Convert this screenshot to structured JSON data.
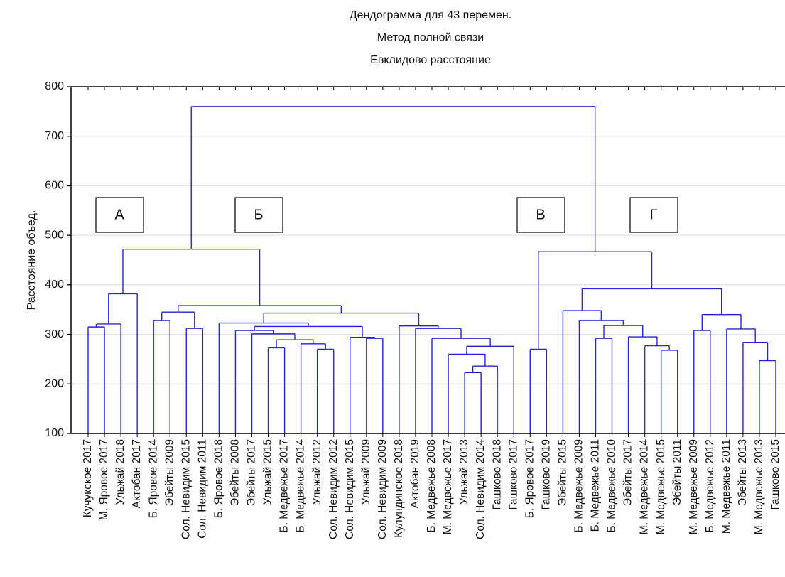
{
  "chart_data": {
    "type": "dendrogram",
    "title": [
      "Дендограмма для 43 перемен.",
      "Метод полной связи",
      "Евклидово расстояние"
    ],
    "ylabel": "Расстояние объед.",
    "ylim": [
      100,
      800
    ],
    "yticks": [
      100,
      200,
      300,
      400,
      500,
      600,
      700,
      800
    ],
    "grid": true,
    "color": "#2323dc",
    "annotations": [
      "А",
      "Б",
      "В",
      "Г"
    ],
    "tree": {
      "height": 760,
      "children": [
        {
          "height": 472,
          "children": [
            {
              "height": 382,
              "children": [
                {
                  "height": 321,
                  "children": [
                    {
                      "height": 315,
                      "children": [
                        "Кучукское 2017",
                        "М. Яровое 2017"
                      ]
                    },
                    "Ульжай 2018"
                  ]
                },
                "Актобан 2017"
              ]
            },
            {
              "height": 358,
              "children": [
                {
                  "height": 345,
                  "children": [
                    {
                      "height": 328,
                      "children": [
                        "Б. Яровое 2014",
                        "Эбейты 2009"
                      ]
                    },
                    {
                      "height": 312,
                      "children": [
                        "Сол. Невидим 2015",
                        "Сол. Невидим 2011"
                      ]
                    }
                  ]
                },
                {
                  "height": 343,
                  "children": [
                    {
                      "height": 323,
                      "children": [
                        "Б. Яровое 2018",
                        {
                          "height": 316,
                          "children": [
                            {
                              "height": 308,
                              "children": [
                                "Эбейты 2008",
                                {
                                  "height": 301,
                                  "children": [
                                    "Эбейты 2017",
                                    {
                                      "height": 289,
                                      "children": [
                                        {
                                          "height": 273,
                                          "children": [
                                            "Ульжай 2015",
                                            "Б. Медвежье 2017"
                                          ]
                                        },
                                        {
                                          "height": 281,
                                          "children": [
                                            "Б. Медвежье 2014",
                                            {
                                              "height": 270,
                                              "children": [
                                                "Ульжай 2012",
                                                "Сол. Невидим 2012"
                                              ]
                                            }
                                          ]
                                        }
                                      ]
                                    }
                                  ]
                                }
                              ]
                            },
                            {
                              "height": 294,
                              "children": [
                                "Сол. Невидим 2015",
                                {
                                  "height": 292,
                                  "children": [
                                    "Ульжай 2009",
                                    "Сол. Невидим 2009"
                                  ]
                                }
                              ]
                            }
                          ]
                        }
                      ]
                    },
                    {
                      "height": 317,
                      "children": [
                        "Кулундинское 2018",
                        {
                          "height": 312,
                          "children": [
                            "Актобан 2019",
                            {
                              "height": 292,
                              "children": [
                                "Б. Медвежье 2008",
                                {
                                  "height": 276,
                                  "children": [
                                    {
                                      "height": 260,
                                      "children": [
                                        "М. Медвежье 2017",
                                        {
                                          "height": 236,
                                          "children": [
                                            {
                                              "height": 223,
                                              "children": [
                                                "Ульжай 2013",
                                                "Сол. Невидим 2014"
                                              ]
                                            },
                                            "Гашково 2018"
                                          ]
                                        }
                                      ]
                                    },
                                    "Гашково 2017"
                                  ]
                                }
                              ]
                            }
                          ]
                        }
                      ]
                    }
                  ]
                }
              ]
            }
          ]
        },
        {
          "height": 467,
          "children": [
            {
              "height": 270,
              "children": [
                "Б. Яровое 2017",
                "Гашково 2019"
              ]
            },
            {
              "height": 392,
              "children": [
                {
                  "height": 348,
                  "children": [
                    "Эбейты 2015",
                    {
                      "height": 328,
                      "children": [
                        "Б. Медвежье 2009",
                        {
                          "height": 318,
                          "children": [
                            {
                              "height": 292,
                              "children": [
                                "Б. Медвежье 2011",
                                "Б. Медвежье 2010"
                              ]
                            },
                            {
                              "height": 295,
                              "children": [
                                "Эбейты 2017",
                                {
                                  "height": 277,
                                  "children": [
                                    "М. Медвежье 2014",
                                    {
                                      "height": 268,
                                      "children": [
                                        "М. Медвежье 2015",
                                        "Эбейты 2011"
                                      ]
                                    }
                                  ]
                                }
                              ]
                            }
                          ]
                        }
                      ]
                    }
                  ]
                },
                {
                  "height": 340,
                  "children": [
                    {
                      "height": 308,
                      "children": [
                        "М. Медвежье 2009",
                        "Б. Медвежье 2012"
                      ]
                    },
                    {
                      "height": 311,
                      "children": [
                        "М. Медвежье 2011",
                        {
                          "height": 284,
                          "children": [
                            "Эбейты 2013",
                            {
                              "height": 247,
                              "children": [
                                "М. Медвежье 2013",
                                "Гашково 2015"
                              ]
                            }
                          ]
                        }
                      ]
                    }
                  ]
                }
              ]
            }
          ]
        }
      ]
    }
  }
}
